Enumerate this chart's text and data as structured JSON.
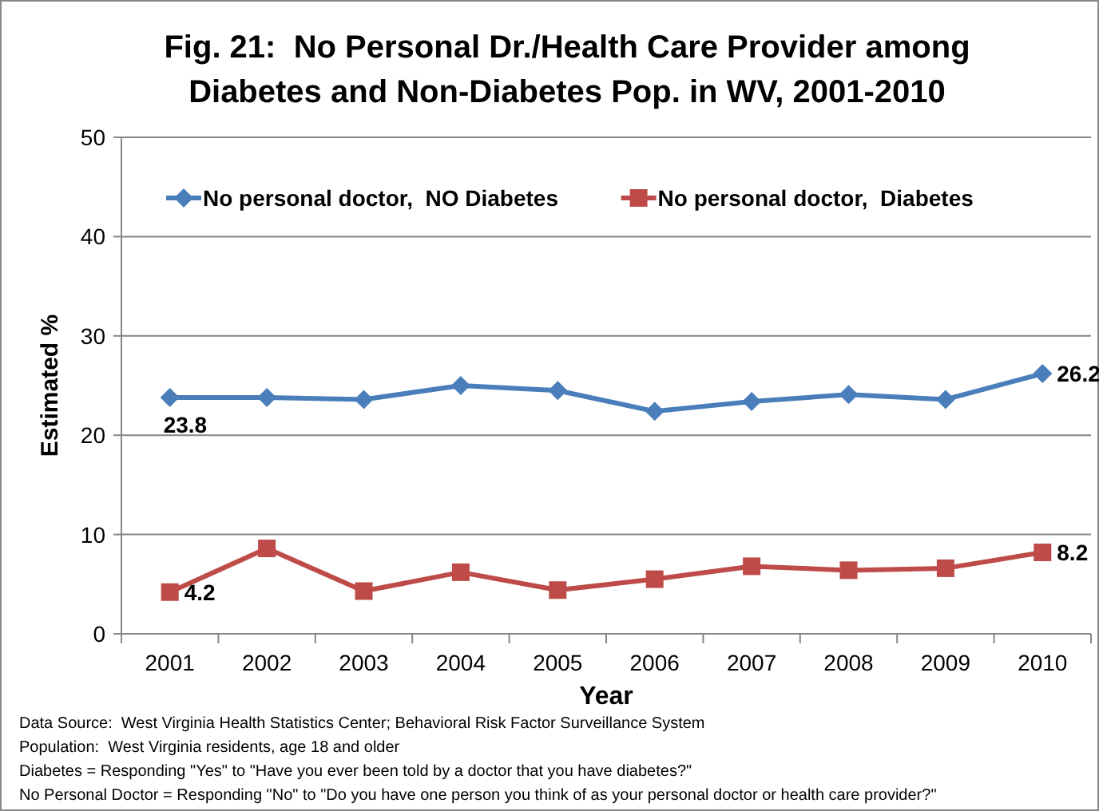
{
  "chart_data": {
    "type": "line",
    "title": "Fig. 21:  No Personal Dr./Health Care Provider among\nDiabetes and Non-Diabetes Pop. in WV, 2001-2010",
    "xlabel": "Year",
    "ylabel": "Estimated %",
    "categories": [
      "2001",
      "2002",
      "2003",
      "2004",
      "2005",
      "2006",
      "2007",
      "2008",
      "2009",
      "2010"
    ],
    "series": [
      {
        "name": "No personal doctor,  NO Diabetes",
        "color": "#4a7ebb",
        "marker": "diamond",
        "values": [
          23.8,
          23.8,
          23.6,
          25.0,
          24.5,
          22.4,
          23.4,
          24.1,
          23.6,
          26.2
        ],
        "value_labels": [
          "23.8",
          null,
          null,
          null,
          null,
          null,
          null,
          null,
          null,
          "26.2"
        ]
      },
      {
        "name": "No personal doctor,  Diabetes",
        "color": "#be4b48",
        "marker": "square",
        "values": [
          4.2,
          8.6,
          4.3,
          6.2,
          4.4,
          5.5,
          6.8,
          6.4,
          6.6,
          8.2
        ],
        "value_labels": [
          "4.2",
          null,
          null,
          null,
          null,
          null,
          null,
          null,
          null,
          "8.2"
        ]
      }
    ],
    "ylim": [
      0,
      50
    ],
    "yticks": [
      0,
      10,
      20,
      30,
      40,
      50
    ],
    "grid": "y",
    "legend": "top",
    "line_style": "solid",
    "annotations": [
      "Data Source:  West Virginia Health Statistics Center; Behavioral Risk Factor Surveillance System",
      "Population:  West Virginia residents, age 18 and older",
      "Diabetes = Responding \"Yes\" to \"Have you ever been told by a doctor that you have diabetes?\"",
      "No Personal Doctor = Responding \"No\" to \"Do you have one person you think of as your personal doctor or health care provider?\""
    ]
  }
}
